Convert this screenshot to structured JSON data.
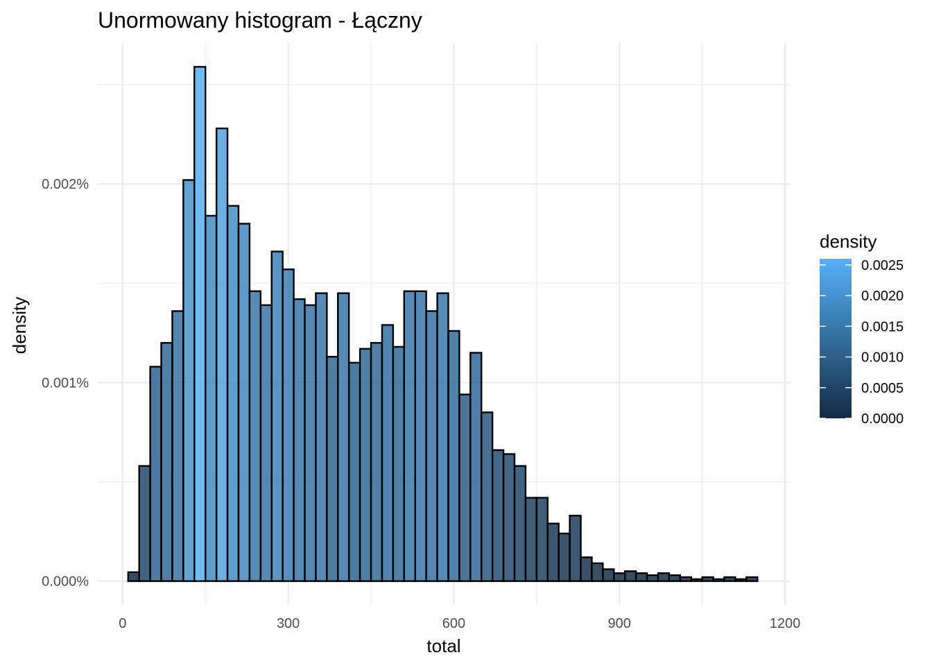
{
  "chart_data": {
    "type": "bar",
    "title": "Unormowany histogram - Łączny",
    "xlabel": "total",
    "ylabel": "density",
    "x_ticks": [
      0,
      300,
      600,
      900,
      1200
    ],
    "x_tick_labels": [
      "0",
      "300",
      "600",
      "900",
      "1200"
    ],
    "xlim": [
      -45,
      1210
    ],
    "y_ticks": [
      0,
      1e-05,
      2e-05
    ],
    "y_tick_labels": [
      "0.000%",
      "0.001%",
      "0.002%"
    ],
    "ylim": [
      -1.2e-06,
      2.71e-05
    ],
    "grid": true,
    "bin_width": 20,
    "bin_centers": [
      20,
      40,
      60,
      80,
      100,
      120,
      140,
      160,
      180,
      200,
      220,
      240,
      260,
      280,
      300,
      320,
      340,
      360,
      380,
      400,
      420,
      440,
      460,
      480,
      500,
      520,
      540,
      560,
      580,
      600,
      620,
      640,
      660,
      680,
      700,
      720,
      740,
      760,
      780,
      800,
      820,
      840,
      860,
      880,
      900,
      920,
      940,
      960,
      980,
      1000,
      1020,
      1040,
      1060,
      1080,
      1100,
      1120,
      1140
    ],
    "values": [
      4.5e-07,
      5.8e-06,
      1.08e-05,
      1.2e-05,
      1.36e-05,
      2.02e-05,
      2.59e-05,
      1.84e-05,
      2.28e-05,
      1.89e-05,
      1.8e-05,
      1.46e-05,
      1.39e-05,
      1.66e-05,
      1.57e-05,
      1.42e-05,
      1.39e-05,
      1.45e-05,
      1.13e-05,
      1.45e-05,
      1.1e-05,
      1.17e-05,
      1.2e-05,
      1.29e-05,
      1.18e-05,
      1.46e-05,
      1.46e-05,
      1.36e-05,
      1.45e-05,
      1.26e-05,
      9.4e-06,
      1.15e-05,
      8.5e-06,
      6.6e-06,
      6.4e-06,
      5.8e-06,
      4.2e-06,
      4.2e-06,
      2.9e-06,
      2.4e-06,
      3.3e-06,
      1.2e-06,
      9e-07,
      6e-07,
      4e-07,
      5e-07,
      4e-07,
      3e-07,
      4e-07,
      3e-07,
      2e-07,
      1e-07,
      2e-07,
      1e-07,
      2e-07,
      1e-07,
      2e-07
    ],
    "fill_scale": {
      "legend_title": "density",
      "low_color": "#132B43",
      "high_color": "#56B1F7",
      "fill_opacity": 0.85,
      "domain": [
        0,
        0.0026
      ],
      "breaks": [
        0,
        0.0005,
        0.001,
        0.0015,
        0.002,
        0.0025
      ],
      "break_labels": [
        "0.0000",
        "0.0005",
        "0.0010",
        "0.0015",
        "0.0020",
        "0.0025"
      ]
    }
  }
}
